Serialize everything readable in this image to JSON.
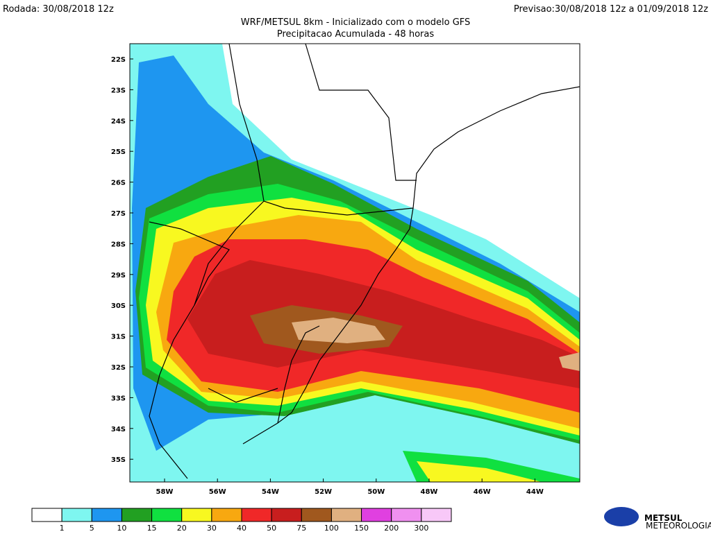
{
  "header": {
    "run": "Rodada: 30/08/2018 12z",
    "forecast": "Previsao:30/08/2018 12z a 01/09/2018 12z",
    "title": "WRF/METSUL 8km - Inicializado com o modelo GFS",
    "subtitle": "Precipitacao Acumulada - 48 horas"
  },
  "map": {
    "lat_labels": [
      "22S",
      "23S",
      "24S",
      "25S",
      "26S",
      "27S",
      "28S",
      "29S",
      "30S",
      "31S",
      "32S",
      "33S",
      "34S",
      "35S"
    ],
    "lon_labels": [
      "58W",
      "56W",
      "54W",
      "52W",
      "50W",
      "48W",
      "46W",
      "44W"
    ]
  },
  "legend": {
    "colors": [
      "#ffffff",
      "#7ef6f0",
      "#1e96f0",
      "#22a022",
      "#10e040",
      "#f8f820",
      "#f8a810",
      "#f02828",
      "#c81e1e",
      "#a0581e",
      "#e0b080",
      "#e040e0",
      "#f090f0",
      "#f8c8f8"
    ],
    "labels": [
      "1",
      "5",
      "10",
      "15",
      "20",
      "30",
      "40",
      "50",
      "75",
      "100",
      "150",
      "200",
      "300"
    ]
  },
  "logo": {
    "name": "METSUL",
    "tagline": "METEOROLOGIA"
  }
}
